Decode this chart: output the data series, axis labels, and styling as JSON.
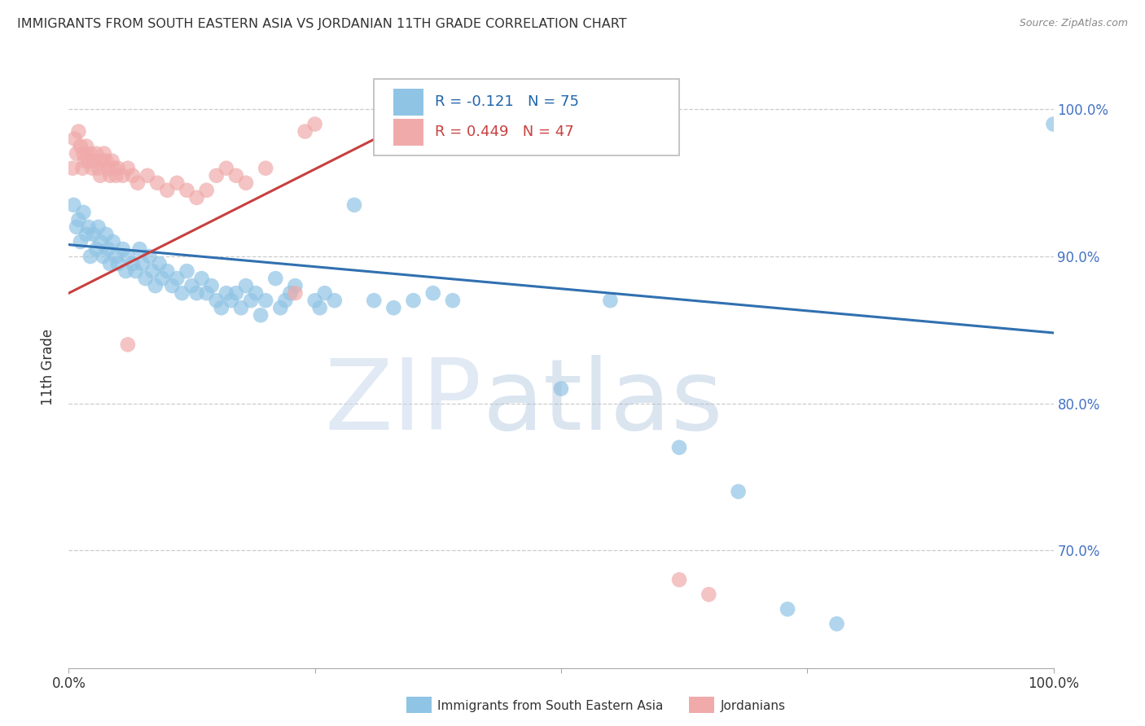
{
  "title": "IMMIGRANTS FROM SOUTH EASTERN ASIA VS JORDANIAN 11TH GRADE CORRELATION CHART",
  "source": "Source: ZipAtlas.com",
  "ylabel": "11th Grade",
  "legend_blue_text": "R = -0.121   N = 75",
  "legend_pink_text": "R = 0.449   N = 47",
  "legend_blue_label": "Immigrants from South Eastern Asia",
  "legend_pink_label": "Jordanians",
  "blue_color": "#90C4E4",
  "pink_color": "#F0AAAA",
  "trendline_blue_color": "#3070B0",
  "trendline_pink_color": "#C84040",
  "blue_trendline": [
    0.0,
    0.908,
    1.0,
    0.848
  ],
  "pink_trendline": [
    0.0,
    0.875,
    0.4,
    1.01
  ],
  "xlim": [
    0.0,
    1.0
  ],
  "ylim": [
    0.62,
    1.03
  ],
  "ytick_values": [
    1.0,
    0.9,
    0.8,
    0.7
  ],
  "ytick_labels": [
    "100.0%",
    "90.0%",
    "80.0%",
    "70.0%"
  ],
  "blue_scatter": [
    [
      0.005,
      0.935
    ],
    [
      0.008,
      0.92
    ],
    [
      0.01,
      0.925
    ],
    [
      0.012,
      0.91
    ],
    [
      0.015,
      0.93
    ],
    [
      0.018,
      0.915
    ],
    [
      0.02,
      0.92
    ],
    [
      0.022,
      0.9
    ],
    [
      0.025,
      0.915
    ],
    [
      0.028,
      0.905
    ],
    [
      0.03,
      0.92
    ],
    [
      0.032,
      0.91
    ],
    [
      0.035,
      0.9
    ],
    [
      0.038,
      0.915
    ],
    [
      0.04,
      0.905
    ],
    [
      0.042,
      0.895
    ],
    [
      0.045,
      0.91
    ],
    [
      0.048,
      0.9
    ],
    [
      0.05,
      0.895
    ],
    [
      0.055,
      0.905
    ],
    [
      0.058,
      0.89
    ],
    [
      0.06,
      0.9
    ],
    [
      0.065,
      0.895
    ],
    [
      0.068,
      0.89
    ],
    [
      0.072,
      0.905
    ],
    [
      0.075,
      0.895
    ],
    [
      0.078,
      0.885
    ],
    [
      0.082,
      0.9
    ],
    [
      0.085,
      0.89
    ],
    [
      0.088,
      0.88
    ],
    [
      0.092,
      0.895
    ],
    [
      0.095,
      0.885
    ],
    [
      0.1,
      0.89
    ],
    [
      0.105,
      0.88
    ],
    [
      0.11,
      0.885
    ],
    [
      0.115,
      0.875
    ],
    [
      0.12,
      0.89
    ],
    [
      0.125,
      0.88
    ],
    [
      0.13,
      0.875
    ],
    [
      0.135,
      0.885
    ],
    [
      0.14,
      0.875
    ],
    [
      0.145,
      0.88
    ],
    [
      0.15,
      0.87
    ],
    [
      0.155,
      0.865
    ],
    [
      0.16,
      0.875
    ],
    [
      0.165,
      0.87
    ],
    [
      0.17,
      0.875
    ],
    [
      0.175,
      0.865
    ],
    [
      0.18,
      0.88
    ],
    [
      0.185,
      0.87
    ],
    [
      0.19,
      0.875
    ],
    [
      0.195,
      0.86
    ],
    [
      0.2,
      0.87
    ],
    [
      0.21,
      0.885
    ],
    [
      0.215,
      0.865
    ],
    [
      0.22,
      0.87
    ],
    [
      0.225,
      0.875
    ],
    [
      0.23,
      0.88
    ],
    [
      0.25,
      0.87
    ],
    [
      0.255,
      0.865
    ],
    [
      0.26,
      0.875
    ],
    [
      0.27,
      0.87
    ],
    [
      0.29,
      0.935
    ],
    [
      0.31,
      0.87
    ],
    [
      0.33,
      0.865
    ],
    [
      0.35,
      0.87
    ],
    [
      0.37,
      0.875
    ],
    [
      0.39,
      0.87
    ],
    [
      0.5,
      0.81
    ],
    [
      0.55,
      0.87
    ],
    [
      0.62,
      0.77
    ],
    [
      0.68,
      0.74
    ],
    [
      0.73,
      0.66
    ],
    [
      0.78,
      0.65
    ],
    [
      1.0,
      0.99
    ]
  ],
  "pink_scatter": [
    [
      0.004,
      0.96
    ],
    [
      0.006,
      0.98
    ],
    [
      0.008,
      0.97
    ],
    [
      0.01,
      0.985
    ],
    [
      0.012,
      0.975
    ],
    [
      0.014,
      0.96
    ],
    [
      0.015,
      0.97
    ],
    [
      0.016,
      0.965
    ],
    [
      0.018,
      0.975
    ],
    [
      0.02,
      0.965
    ],
    [
      0.022,
      0.97
    ],
    [
      0.024,
      0.96
    ],
    [
      0.026,
      0.965
    ],
    [
      0.028,
      0.97
    ],
    [
      0.03,
      0.96
    ],
    [
      0.032,
      0.955
    ],
    [
      0.034,
      0.965
    ],
    [
      0.036,
      0.97
    ],
    [
      0.038,
      0.965
    ],
    [
      0.04,
      0.96
    ],
    [
      0.042,
      0.955
    ],
    [
      0.044,
      0.965
    ],
    [
      0.046,
      0.96
    ],
    [
      0.048,
      0.955
    ],
    [
      0.05,
      0.96
    ],
    [
      0.055,
      0.955
    ],
    [
      0.06,
      0.96
    ],
    [
      0.065,
      0.955
    ],
    [
      0.07,
      0.95
    ],
    [
      0.08,
      0.955
    ],
    [
      0.09,
      0.95
    ],
    [
      0.1,
      0.945
    ],
    [
      0.11,
      0.95
    ],
    [
      0.12,
      0.945
    ],
    [
      0.13,
      0.94
    ],
    [
      0.14,
      0.945
    ],
    [
      0.15,
      0.955
    ],
    [
      0.16,
      0.96
    ],
    [
      0.17,
      0.955
    ],
    [
      0.18,
      0.95
    ],
    [
      0.2,
      0.96
    ],
    [
      0.23,
      0.875
    ],
    [
      0.24,
      0.985
    ],
    [
      0.25,
      0.99
    ],
    [
      0.62,
      0.68
    ],
    [
      0.65,
      0.67
    ],
    [
      0.06,
      0.84
    ]
  ]
}
